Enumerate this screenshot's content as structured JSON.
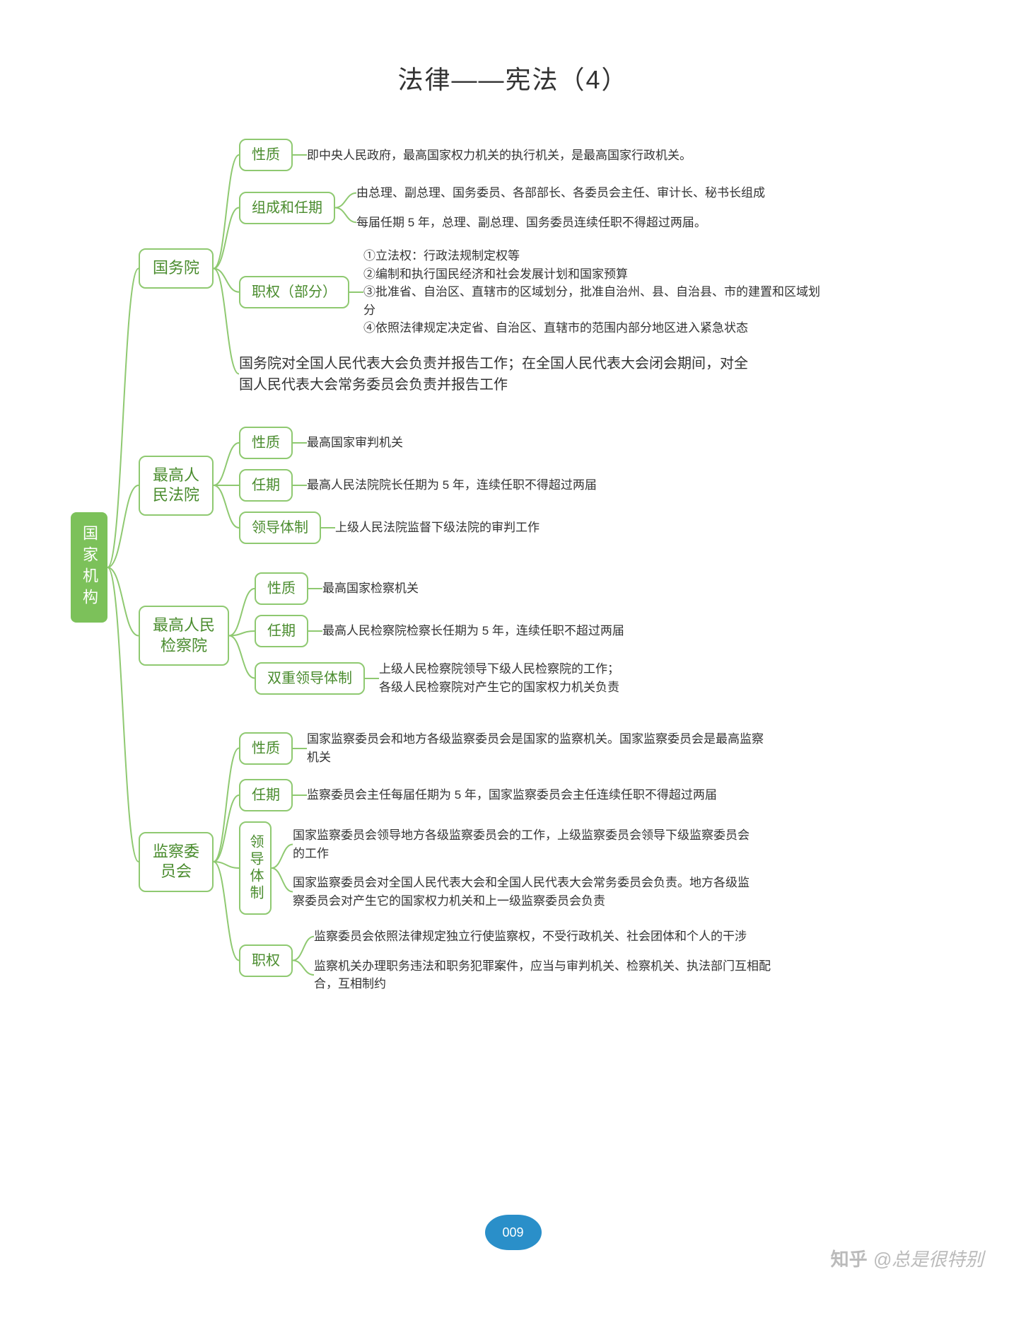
{
  "title": "法律——宪法（4）",
  "colors": {
    "root_fill": "#7cc15a",
    "node_border": "#8fc971",
    "node_text": "#4a8c2e",
    "line": "#8fc971",
    "body_text": "#333333",
    "page_num_bg": "#2a8fc9",
    "watermark": "#bbbbbb",
    "background": "#ffffff"
  },
  "root": "国家机构",
  "branches": [
    {
      "label": "国务院",
      "subs": [
        {
          "label": "性质",
          "leaves": [
            "即中央人民政府，最高国家权力机关的执行机关，是最高国家行政机关。"
          ]
        },
        {
          "label": "组成和任期",
          "leaves": [
            "由总理、副总理、国务委员、各部部长、各委员会主任、审计长、秘书长组成",
            "每届任期 5 年，总理、副总理、国务委员连续任职不得超过两届。"
          ]
        },
        {
          "label": "职权（部分）",
          "leaves": [
            "①立法权：行政法规制定权等\n②编制和执行国民经济和社会发展计划和国家预算\n③批准省、自治区、直辖市的区域划分，批准自治州、县、自治县、市的建置和区域划分\n④依照法律规定决定省、自治区、直辖市的范围内部分地区进入紧急状态"
          ]
        },
        {
          "label": "",
          "leaves": [
            "国务院对全国人民代表大会负责并报告工作；在全国人民代表大会闭会期间，对全国人民代表大会常务委员会负责并报告工作"
          ],
          "big": true
        }
      ]
    },
    {
      "label": "最高人民法院",
      "vert": false,
      "subs": [
        {
          "label": "性质",
          "leaves": [
            "最高国家审判机关"
          ]
        },
        {
          "label": "任期",
          "leaves": [
            "最高人民法院院长任期为 5 年，连续任职不得超过两届"
          ]
        },
        {
          "label": "领导体制",
          "leaves": [
            "上级人民法院监督下级法院的审判工作"
          ]
        }
      ]
    },
    {
      "label": "最高人民检察院",
      "vert": false,
      "subs": [
        {
          "label": "性质",
          "leaves": [
            "最高国家检察机关"
          ]
        },
        {
          "label": "任期",
          "leaves": [
            "最高人民检察院检察长任期为 5 年，连续任职不超过两届"
          ]
        },
        {
          "label": "双重领导体制",
          "leaves": [
            "上级人民检察院领导下级人民检察院的工作；\n各级人民检察院对产生它的国家权力机关负责"
          ]
        }
      ]
    },
    {
      "label": "监察委员会",
      "subs": [
        {
          "label": "性质",
          "leaves": [
            "国家监察委员会和地方各级监察委员会是国家的监察机关。国家监察委员会是最高监察机关"
          ]
        },
        {
          "label": "任期",
          "leaves": [
            "监察委员会主任每届任期为 5 年，国家监察委员会主任连续任职不得超过两届"
          ]
        },
        {
          "label": "领导体制",
          "vert": true,
          "leaves": [
            "国家监察委员会领导地方各级监察委员会的工作，上级监察委员会领导下级监察委员会的工作",
            "国家监察委员会对全国人民代表大会和全国人民代表大会常务委员会负责。地方各级监察委员会对产生它的国家权力机关和上一级监察委员会负责"
          ]
        },
        {
          "label": "职权",
          "leaves": [
            "监察委员会依照法律规定独立行使监察权，不受行政机关、社会团体和个人的干涉",
            "监察机关办理职务违法和职务犯罪案件，应当与审判机关、检察机关、执法部门互相配合，互相制约"
          ]
        }
      ]
    }
  ],
  "page_number": "009",
  "watermark_logo": "知乎",
  "watermark_text": "@总是很特别"
}
